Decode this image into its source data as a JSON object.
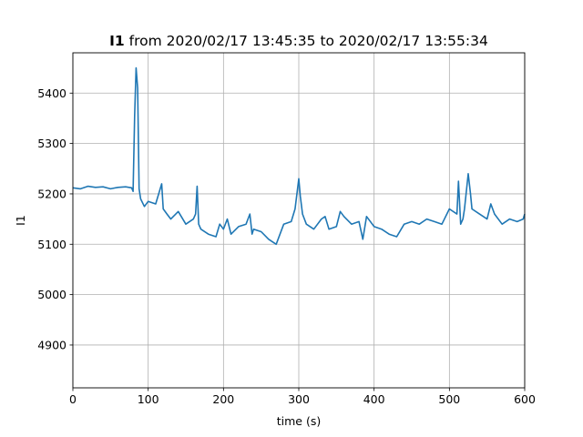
{
  "chart_data": {
    "type": "line",
    "title_bold": "I1",
    "title_rest": " from 2020/02/17 13:45:35 to 2020/02/17 13:55:34",
    "xlabel": "time (s)",
    "ylabel": "I1",
    "xlim": [
      0,
      600
    ],
    "ylim": [
      4815,
      5480
    ],
    "x_ticks": [
      0,
      100,
      200,
      300,
      400,
      500,
      600
    ],
    "y_ticks": [
      4900,
      5000,
      5100,
      5200,
      5300,
      5400
    ],
    "grid": true,
    "line_color": "#1f77b4",
    "series": [
      {
        "x": [
          0,
          10,
          20,
          30,
          40,
          50,
          60,
          70,
          78,
          80,
          82,
          84,
          86,
          88,
          90,
          95,
          100,
          110,
          118,
          120,
          125,
          130,
          140,
          150,
          160,
          163,
          165,
          167,
          170,
          180,
          190,
          195,
          200,
          205,
          210,
          220,
          230,
          235,
          238,
          240,
          250,
          260,
          270,
          280,
          290,
          295,
          300,
          302,
          305,
          310,
          320,
          330,
          335,
          340,
          350,
          355,
          360,
          370,
          380,
          385,
          390,
          400,
          410,
          420,
          430,
          440,
          450,
          460,
          470,
          480,
          490,
          500,
          510,
          512,
          515,
          518,
          520,
          525,
          528,
          530,
          540,
          550,
          555,
          560,
          570,
          580,
          590,
          598,
          600
        ],
        "y": [
          5212,
          5210,
          5215,
          5213,
          5214,
          5210,
          5213,
          5214,
          5212,
          5205,
          5355,
          5450,
          5410,
          5210,
          5190,
          5175,
          5185,
          5180,
          5220,
          5170,
          5160,
          5150,
          5165,
          5140,
          5150,
          5160,
          5215,
          5140,
          5130,
          5120,
          5115,
          5140,
          5130,
          5150,
          5120,
          5135,
          5140,
          5160,
          5120,
          5130,
          5125,
          5110,
          5100,
          5140,
          5145,
          5170,
          5230,
          5195,
          5160,
          5140,
          5130,
          5150,
          5155,
          5130,
          5135,
          5165,
          5155,
          5140,
          5145,
          5110,
          5155,
          5135,
          5130,
          5120,
          5115,
          5140,
          5145,
          5140,
          5150,
          5145,
          5140,
          5170,
          5160,
          5225,
          5140,
          5150,
          5170,
          5240,
          5200,
          5170,
          5160,
          5150,
          5180,
          5160,
          5140,
          5150,
          5145,
          5150,
          5160
        ]
      }
    ]
  }
}
